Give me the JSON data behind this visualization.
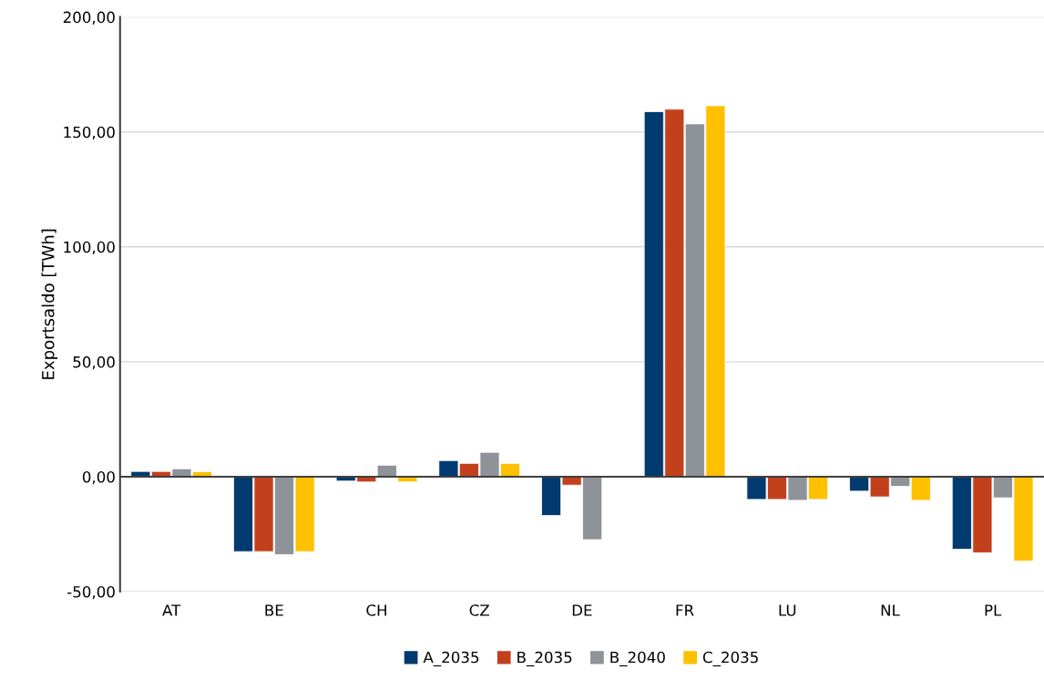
{
  "chart_data": {
    "type": "bar",
    "ylabel": "Exportsaldo [TWh]",
    "categories": [
      "AT",
      "BE",
      "CH",
      "CZ",
      "DE",
      "FR",
      "LU",
      "NL",
      "PL"
    ],
    "series": [
      {
        "name": "A_2035",
        "color": "#003a6e",
        "values": [
          2.3,
          -32.6,
          -1.9,
          7.0,
          -16.9,
          158.8,
          -9.9,
          -6.3,
          -31.6
        ]
      },
      {
        "name": "B_2035",
        "color": "#c2411c",
        "values": [
          2.3,
          -32.6,
          -2.3,
          5.8,
          -3.7,
          159.9,
          -9.9,
          -8.8,
          -33.1
        ]
      },
      {
        "name": "B_2040",
        "color": "#8e9299",
        "values": [
          3.4,
          -33.9,
          5.0,
          10.6,
          -27.4,
          153.5,
          -10.3,
          -4.2,
          -9.2
        ]
      },
      {
        "name": "C_2035",
        "color": "#ffc000",
        "values": [
          2.2,
          -32.6,
          -2.3,
          5.8,
          null,
          161.4,
          -9.9,
          -10.3,
          -36.7
        ]
      }
    ],
    "ylim": [
      -50,
      200
    ],
    "yticks": [
      {
        "value": -50,
        "label": "-50,00"
      },
      {
        "value": 0,
        "label": "0,00"
      },
      {
        "value": 50,
        "label": "50,00"
      },
      {
        "value": 100,
        "label": "100,00"
      },
      {
        "value": 150,
        "label": "150,00"
      },
      {
        "value": 200,
        "label": "200,00"
      }
    ],
    "grid": "y",
    "legend": "bottom"
  }
}
